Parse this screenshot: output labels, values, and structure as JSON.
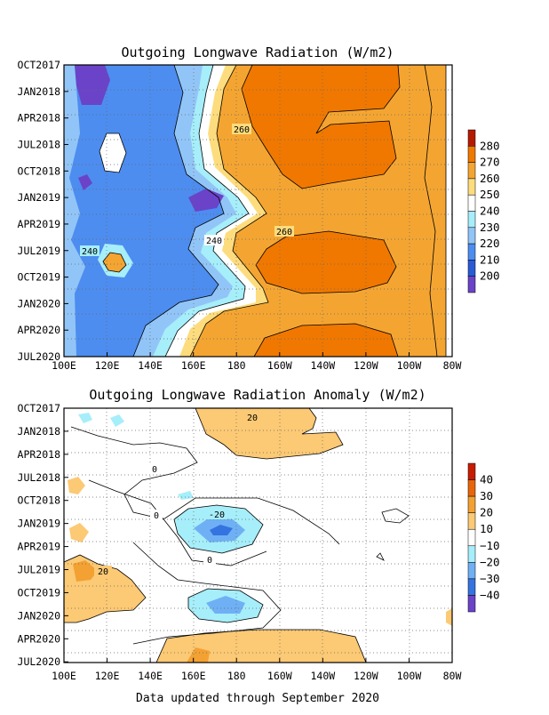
{
  "footer": "Data updated through September 2020",
  "chart_data": [
    {
      "type": "heatmap",
      "title": "Outgoing Longwave Radiation (W/m2)",
      "x_ticks": [
        "100E",
        "120E",
        "140E",
        "160E",
        "180",
        "160W",
        "140W",
        "120W",
        "100W",
        "80W"
      ],
      "y_ticks": [
        "OCT2017",
        "JAN2018",
        "APR2018",
        "JUL2018",
        "OCT2018",
        "JAN2019",
        "APR2019",
        "JUL2019",
        "OCT2019",
        "JAN2020",
        "APR2020",
        "JUL2020"
      ],
      "colorbar": {
        "labels": [
          "280",
          "270",
          "260",
          "250",
          "240",
          "230",
          "220",
          "210",
          "200"
        ],
        "colors": [
          "#b51a00",
          "#f07800",
          "#f4a531",
          "#fddc7d",
          "#ffffff",
          "#a6eefa",
          "#92c5f7",
          "#4d8df0",
          "#2a5bd6",
          "#6a43c9"
        ]
      },
      "contour_labels": [
        "260",
        "240",
        "260",
        "240"
      ],
      "grid": true
    },
    {
      "type": "heatmap",
      "title": "Outgoing Longwave Radiation Anomaly (W/m2)",
      "x_ticks": [
        "100E",
        "120E",
        "140E",
        "160E",
        "180",
        "160W",
        "140W",
        "120W",
        "100W",
        "80W"
      ],
      "y_ticks": [
        "OCT2017",
        "JAN2018",
        "APR2018",
        "JUL2018",
        "OCT2018",
        "JAN2019",
        "APR2019",
        "JUL2019",
        "OCT2019",
        "JAN2020",
        "APR2020",
        "JUL2020"
      ],
      "colorbar": {
        "labels": [
          "40",
          "30",
          "20",
          "10",
          "−10",
          "−20",
          "−30",
          "−40"
        ],
        "colors": [
          "#c81c00",
          "#e8650a",
          "#f3a132",
          "#fcc974",
          "#ffffff",
          "#a6eefa",
          "#6fb0f5",
          "#3573e0",
          "#6a43c9"
        ]
      },
      "contour_labels": [
        "20",
        "0",
        "0",
        "-20",
        "0",
        "20"
      ],
      "grid": true
    }
  ]
}
